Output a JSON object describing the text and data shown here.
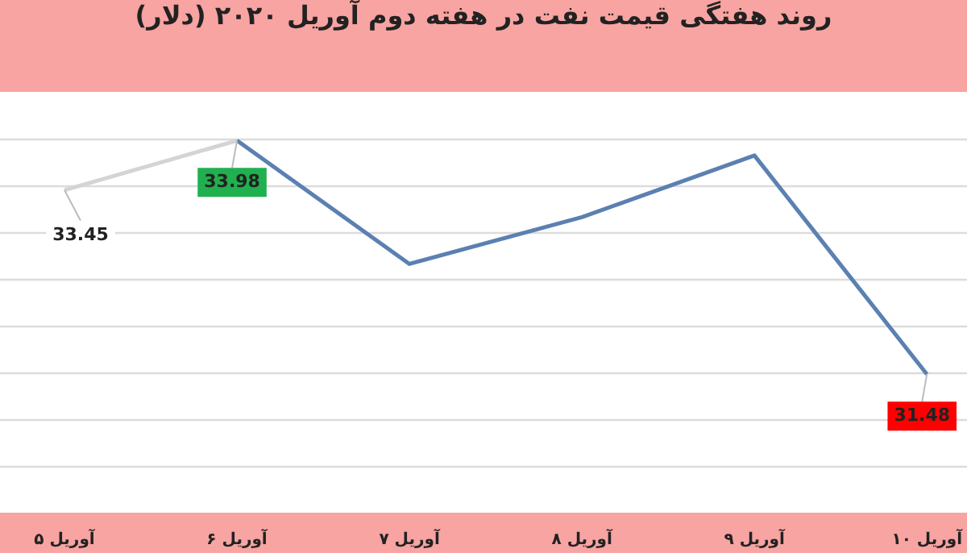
{
  "chart_data": {
    "type": "line",
    "title": "روند هفتگی قیمت نفت در هفته دوم آوریل ۲۰۲۰ (دلار)",
    "categories": [
      "۵ آوریل",
      "۶ آوریل",
      "۷ آوریل",
      "۸ آوریل",
      "۹ آوریل",
      "۱۰ آوریل"
    ],
    "series": [
      {
        "color": "#d4d4d4",
        "values": [
          33.45,
          33.98,
          null,
          null,
          null,
          null
        ],
        "value_labels": [
          "33.45",
          null,
          null,
          null,
          null,
          null
        ]
      },
      {
        "color": "#5b80b2",
        "values": [
          null,
          33.98,
          32.66,
          33.16,
          33.82,
          31.48
        ],
        "value_labels": [
          null,
          "33.98",
          null,
          null,
          null,
          "31.48"
        ]
      }
    ],
    "ylim": [
      30,
      34.5
    ],
    "yticks": [
      {
        "value": 30.5,
        "label": null
      },
      {
        "value": 31,
        "label": null
      },
      {
        "value": 31.5,
        "label": null
      },
      {
        "value": 32,
        "label": null
      },
      {
        "value": 32.5,
        "label": null
      },
      {
        "value": 33,
        "label": null
      },
      {
        "value": 33.5,
        "label": null
      },
      {
        "value": 34,
        "label": null
      }
    ],
    "tick_labels": "x",
    "grid": "y",
    "legend": false,
    "marker": "none",
    "line_style": "solid"
  }
}
